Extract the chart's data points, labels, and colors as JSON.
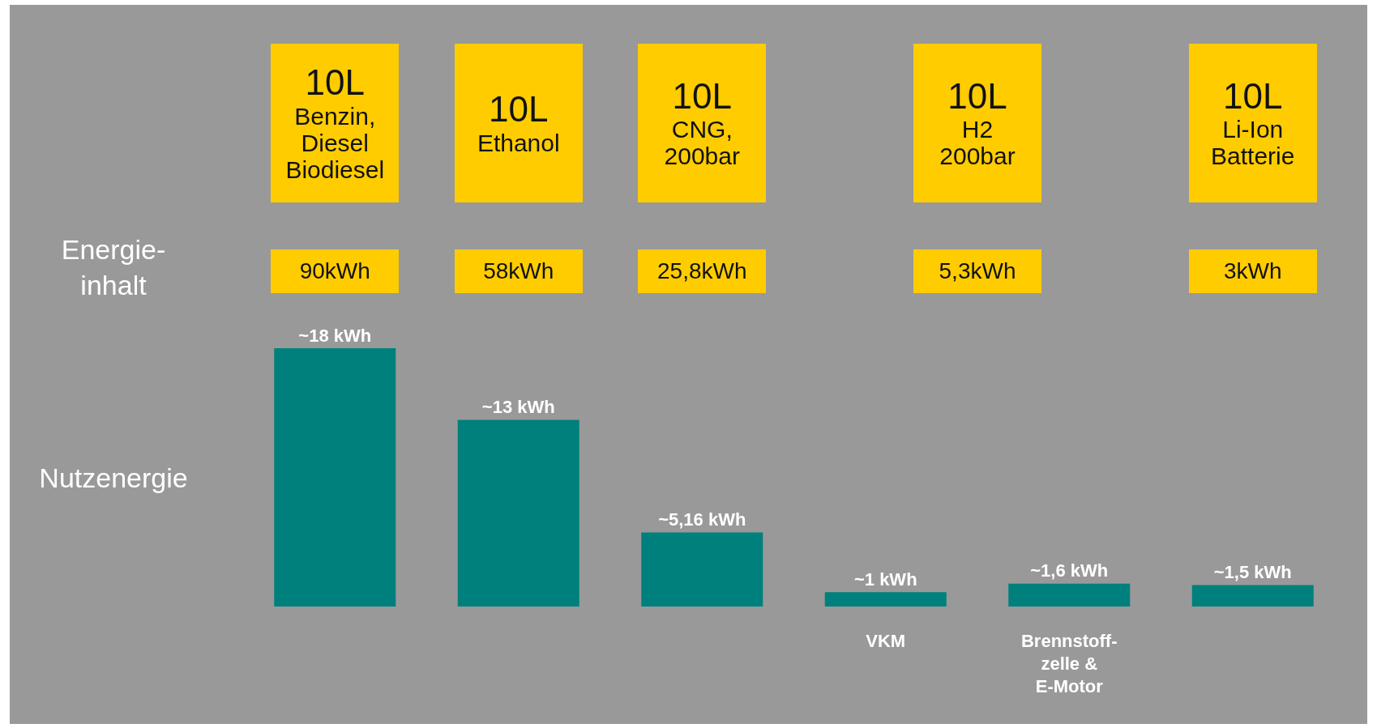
{
  "chart_data": {
    "type": "bar",
    "categories": [
      null,
      null,
      null,
      "VKM",
      "Brennstoff-\nzelle &\nE-Motor",
      null
    ],
    "values": [
      18,
      13,
      5.16,
      1,
      1.6,
      1.5
    ],
    "value_labels": [
      "~18 kWh",
      "~13 kWh",
      "~5,16 kWh",
      "~1 kWh",
      "~1,6 kWh",
      "~1,5 kWh"
    ],
    "color": "#00807c",
    "annotations": [
      "10L\nBenzin,\nDiesel\nBiodiesel",
      "10L\nEthanol",
      "10L\nCNG,\n200bar",
      "10L\nH2\n200bar",
      "10L\nLi-Ion\nBatterie",
      "90kWh",
      "58kWh",
      "25,8kWh",
      "5,3kWh",
      "3kWh",
      "Energie-\ninhalt",
      "Nutzenergie"
    ],
    "grid": false
  }
}
